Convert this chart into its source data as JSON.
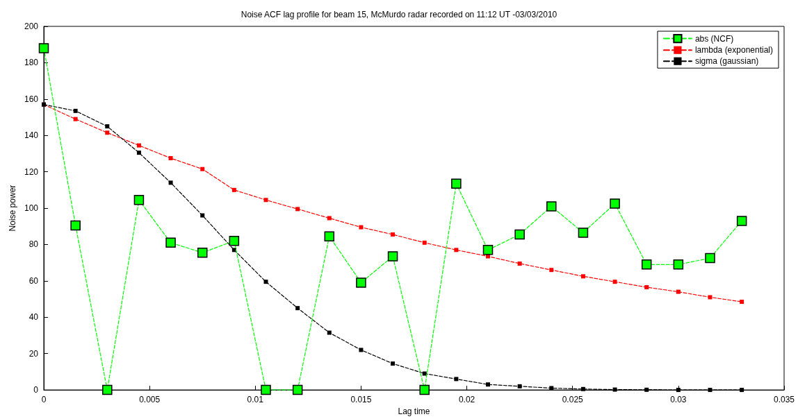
{
  "chart_data": {
    "type": "line",
    "title": "Noise ACF lag profile for beam 15, McMurdo radar recorded on 11:12 UT -03/03/2010",
    "xlabel": "Lag time",
    "ylabel": "Noise power",
    "x": [
      0,
      0.0015,
      0.003,
      0.0045,
      0.006,
      0.0075,
      0.009,
      0.0105,
      0.012,
      0.0135,
      0.015,
      0.0165,
      0.018,
      0.0195,
      0.021,
      0.0225,
      0.024,
      0.0255,
      0.027,
      0.0285,
      0.03,
      0.0315,
      0.033
    ],
    "series": [
      {
        "name": "abs (NCF)",
        "color": "#00ff00",
        "marker": "square",
        "line_style": "dashed",
        "values": [
          188,
          90.5,
          0,
          104.5,
          81,
          75.5,
          82,
          0,
          0,
          84.5,
          59,
          73.5,
          0,
          113.5,
          77,
          85.5,
          101,
          86.5,
          102.5,
          69,
          69,
          72.5,
          93
        ]
      },
      {
        "name": "lambda (exponential)",
        "color": "#ff0000",
        "marker": "square",
        "line_style": "dashed",
        "values": [
          157,
          149,
          141.5,
          134.5,
          127.5,
          121.5,
          110,
          104.5,
          99.5,
          94.5,
          89.5,
          85.5,
          81,
          77,
          73.5,
          69.5,
          66,
          62.5,
          59.5,
          56.5,
          54,
          51,
          48.5
        ]
      },
      {
        "name": "sigma (gaussian)",
        "color": "#000000",
        "marker": "square",
        "line_style": "dashed",
        "values": [
          157,
          153.5,
          145,
          130.5,
          114,
          96,
          77,
          59.5,
          45,
          31.5,
          22,
          14.5,
          9,
          6,
          3,
          2,
          1,
          0.5,
          0.2,
          0.1,
          0,
          0,
          0
        ]
      }
    ],
    "xlim": [
      0,
      0.035
    ],
    "xticks": [
      0,
      0.005,
      0.01,
      0.015,
      0.02,
      0.025,
      0.03,
      0.035
    ],
    "ylim": [
      0,
      200
    ],
    "yticks": [
      0,
      20,
      40,
      60,
      80,
      100,
      120,
      140,
      160,
      180,
      200
    ],
    "grid": false,
    "legend": "top right"
  }
}
